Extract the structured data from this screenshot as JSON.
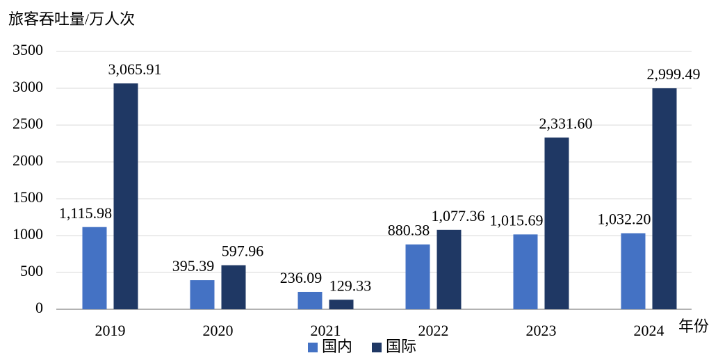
{
  "chart_data": {
    "type": "bar",
    "y_axis_label": "旅客吞吐量/万人次",
    "x_axis_label": "年份",
    "categories": [
      "2019",
      "2020",
      "2021",
      "2022",
      "2023",
      "2024"
    ],
    "series": [
      {
        "name": "国内",
        "color": "#4472c4",
        "values": [
          1115.98,
          395.39,
          236.09,
          880.38,
          1015.69,
          1032.2
        ],
        "value_labels": [
          "1,115.98",
          "395.39",
          "236.09",
          "880.38",
          "1,015.69",
          "1,032.20"
        ]
      },
      {
        "name": "国际",
        "color": "#1f3864",
        "values": [
          3065.91,
          597.96,
          129.33,
          1077.36,
          2331.6,
          2999.49
        ],
        "value_labels": [
          "3,065.91",
          "597.96",
          "129.33",
          "1,077.36",
          "2,331.60",
          "2,999.49"
        ]
      }
    ],
    "ylim": [
      0,
      3500
    ],
    "yticks": [
      0,
      500,
      1000,
      1500,
      2000,
      2500,
      3000,
      3500
    ],
    "grid": true,
    "legend": "bottom"
  }
}
